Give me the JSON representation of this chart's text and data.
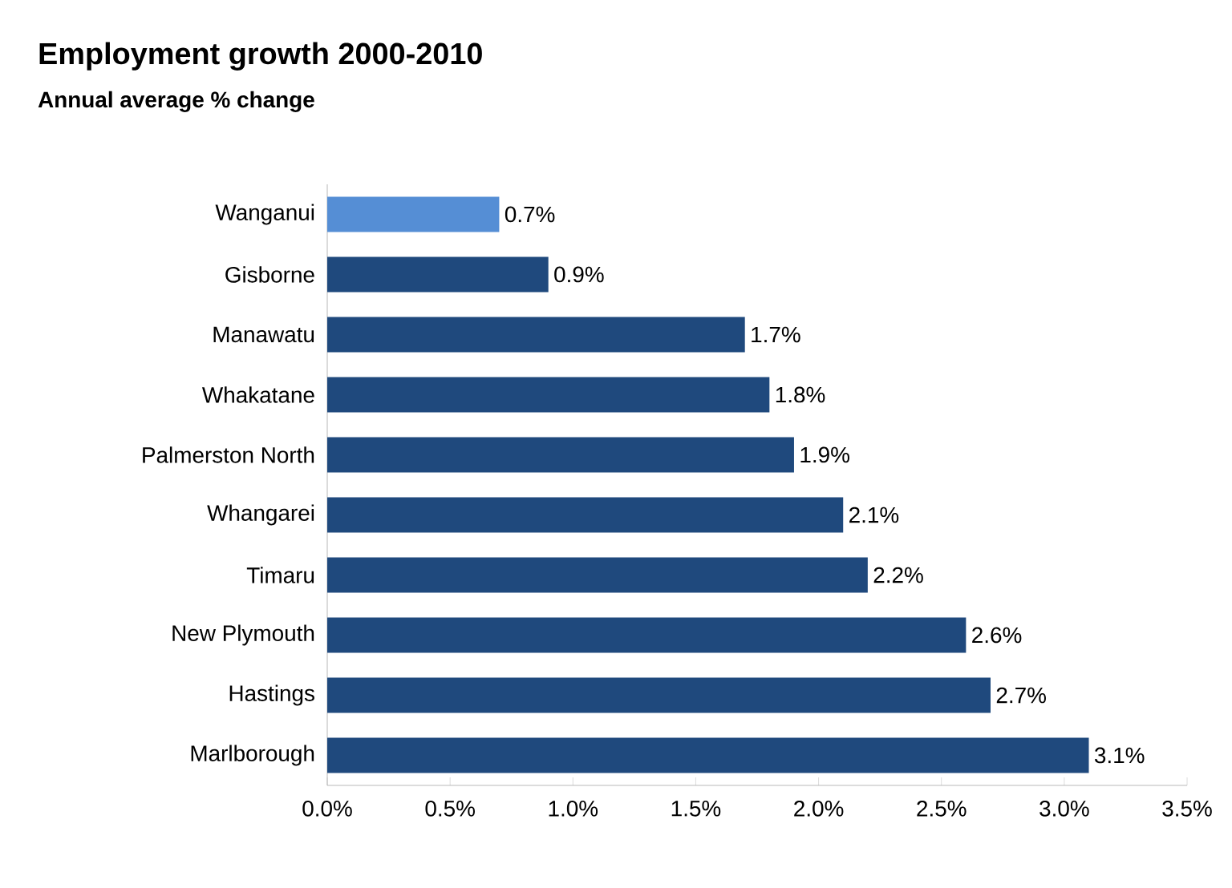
{
  "chart_data": {
    "type": "bar",
    "orientation": "horizontal",
    "title": "Employment growth 2000-2010",
    "subtitle": "Annual average % change",
    "categories": [
      "Wanganui",
      "Gisborne",
      "Manawatu",
      "Whakatane",
      "Palmerston North",
      "Whangarei",
      "Timaru",
      "New Plymouth",
      "Hastings",
      "Marlborough"
    ],
    "values": [
      0.7,
      0.9,
      1.7,
      1.8,
      1.9,
      2.1,
      2.2,
      2.6,
      2.7,
      3.1
    ],
    "value_labels": [
      "0.7%",
      "0.9%",
      "1.7%",
      "1.8%",
      "1.9%",
      "2.1%",
      "2.2%",
      "2.6%",
      "2.7%",
      "3.1%"
    ],
    "colors": [
      "#558ed5",
      "#1f497d",
      "#1f497d",
      "#1f497d",
      "#1f497d",
      "#1f497d",
      "#1f497d",
      "#1f497d",
      "#1f497d",
      "#1f497d"
    ],
    "xlim": [
      0,
      3.5
    ],
    "xticks": [
      {
        "value": 0,
        "label": "0.0%"
      },
      {
        "value": 0.5,
        "label": "0.5%"
      },
      {
        "value": 1,
        "label": "1.0%"
      },
      {
        "value": 1.5,
        "label": "1.5%"
      },
      {
        "value": 2,
        "label": "2.0%"
      },
      {
        "value": 2.5,
        "label": "2.5%"
      },
      {
        "value": 3,
        "label": "3.0%"
      },
      {
        "value": 3.5,
        "label": "3.5%"
      }
    ],
    "grid": false
  }
}
